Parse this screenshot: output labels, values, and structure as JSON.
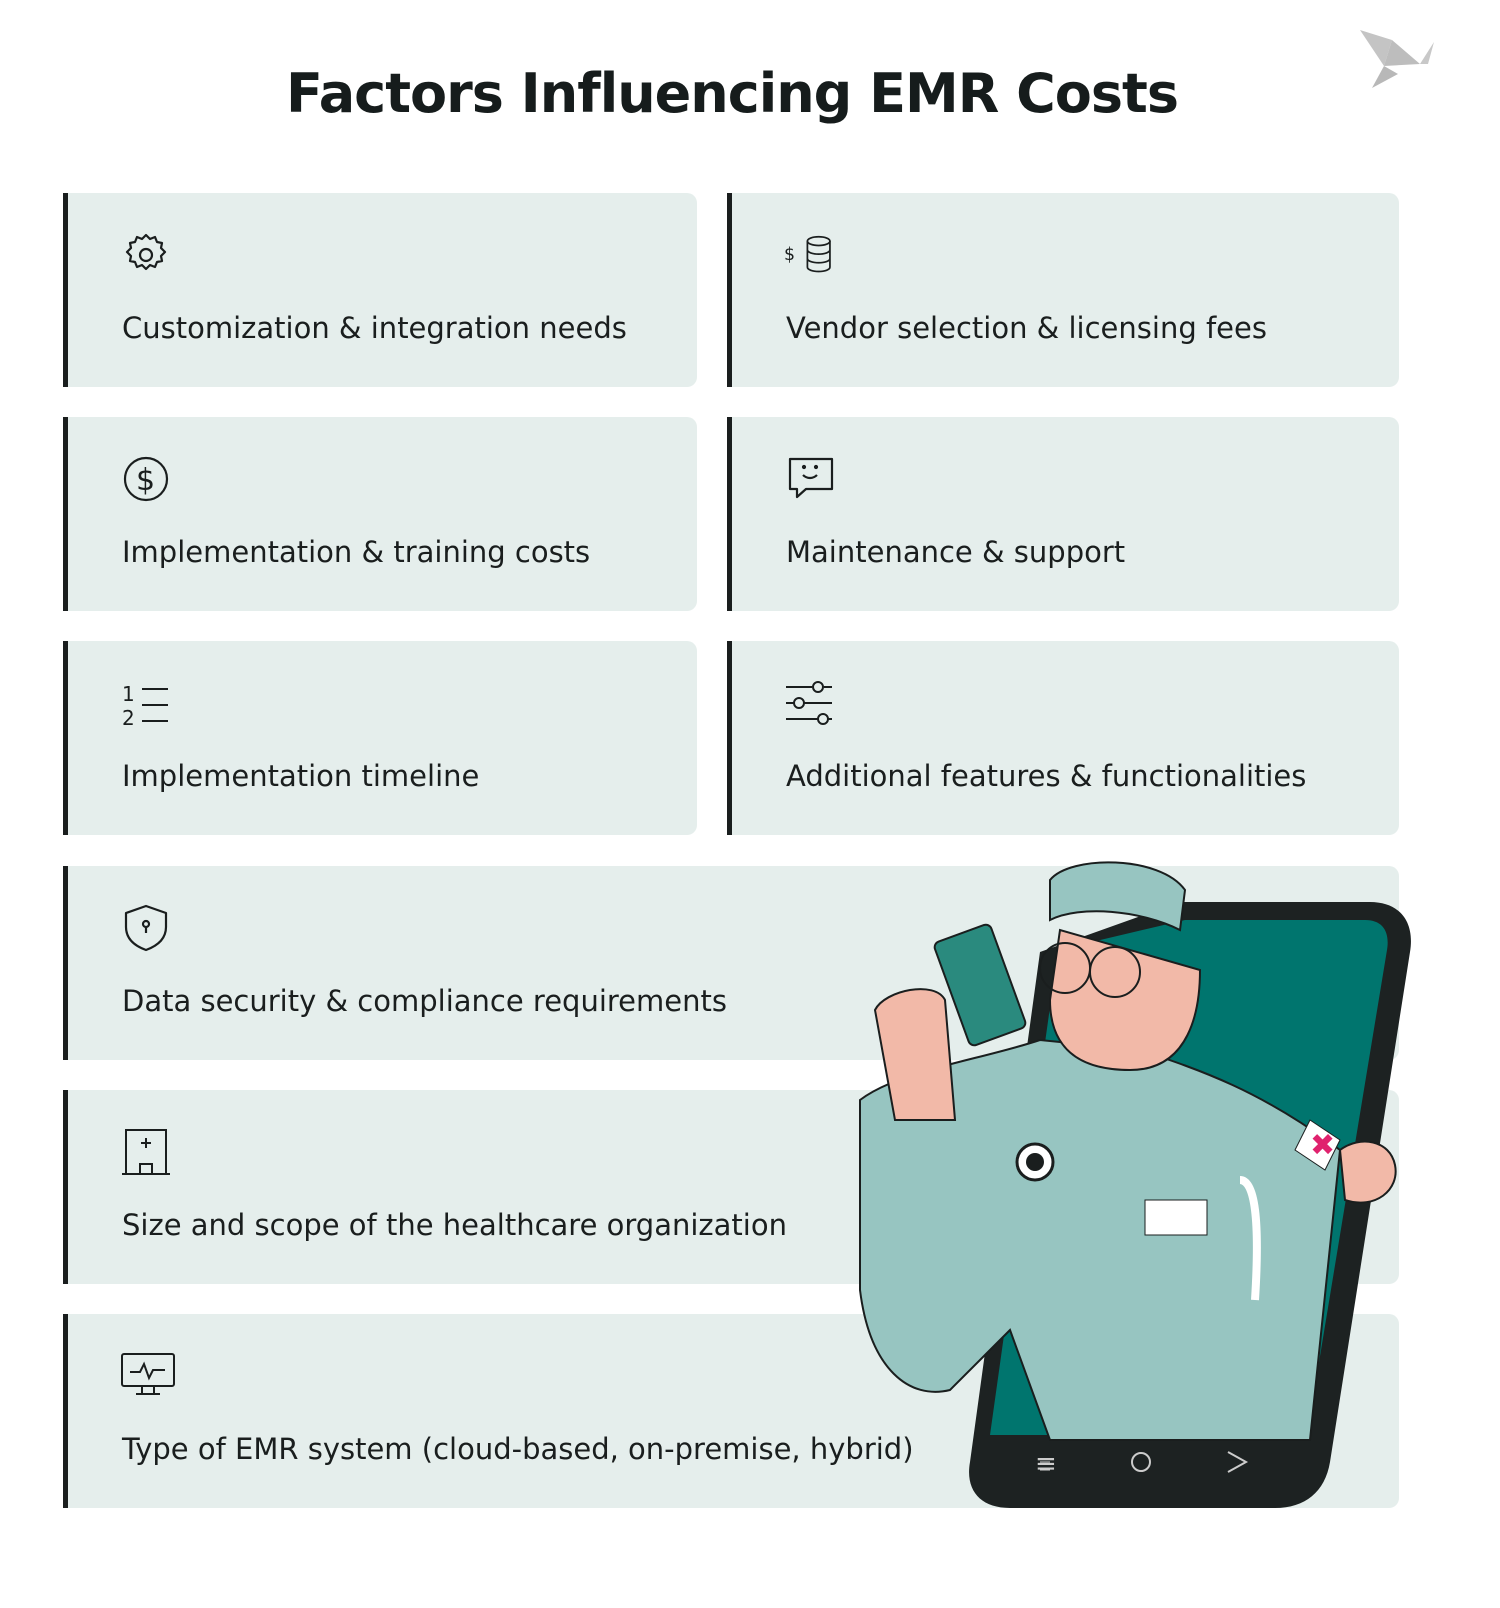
{
  "title": "Factors Influencing EMR Costs",
  "colors": {
    "card_bg": "#e5eeec",
    "accent_border": "#1a1e1e",
    "teal": "#00756e",
    "scrubs": "#97c5c1"
  },
  "factors": [
    {
      "label": "Customization & integration needs",
      "icon": "gear-icon"
    },
    {
      "label": "Vendor selection & licensing fees",
      "icon": "dollar-coins-icon"
    },
    {
      "label": "Implementation & training costs",
      "icon": "dollar-circle-icon"
    },
    {
      "label": "Maintenance & support",
      "icon": "chat-smile-icon"
    },
    {
      "label": "Implementation timeline",
      "icon": "numbered-list-icon"
    },
    {
      "label": "Additional features & functionalities",
      "icon": "sliders-icon"
    },
    {
      "label": "Data security & compliance requirements",
      "icon": "shield-lock-icon"
    },
    {
      "label": "Size and scope of the healthcare organization",
      "icon": "hospital-icon"
    },
    {
      "label": "Type of EMR system (cloud-based, on-premise, hybrid)",
      "icon": "monitor-pulse-icon"
    }
  ]
}
